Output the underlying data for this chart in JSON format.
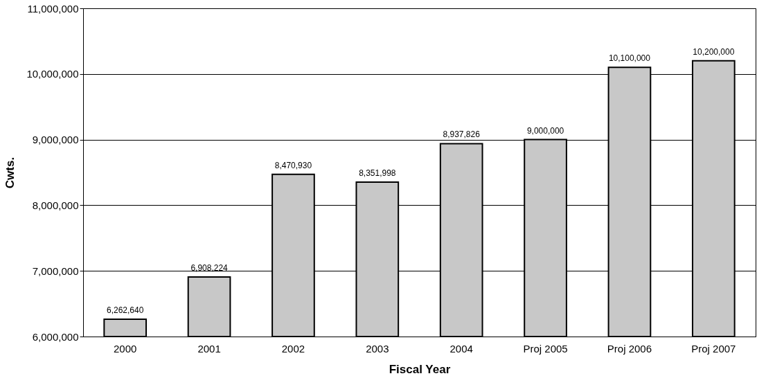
{
  "chart_data": {
    "type": "bar",
    "xlabel": "Fiscal Year",
    "ylabel": "Cwts.",
    "categories": [
      "2000",
      "2001",
      "2002",
      "2003",
      "2004",
      "Proj 2005",
      "Proj 2006",
      "Proj 2007"
    ],
    "values": [
      6262640,
      6908224,
      8470930,
      8351998,
      8937826,
      9000000,
      10100000,
      10200000
    ],
    "value_labels": [
      "6,262,640",
      "6,908,224",
      "8,470,930",
      "8,351,998",
      "8,937,826",
      "9,000,000",
      "10,100,000",
      "10,200,000"
    ],
    "color": "#c8c8c8",
    "ylim": [
      6000000,
      11000000
    ],
    "yticks": [
      {
        "value": 6000000,
        "label": "6,000,000"
      },
      {
        "value": 7000000,
        "label": "7,000,000"
      },
      {
        "value": 8000000,
        "label": "8,000,000"
      },
      {
        "value": 9000000,
        "label": "9,000,000"
      },
      {
        "value": 10000000,
        "label": "10,000,000"
      },
      {
        "value": 11000000,
        "label": "11,000,000"
      }
    ],
    "grid": "y"
  }
}
